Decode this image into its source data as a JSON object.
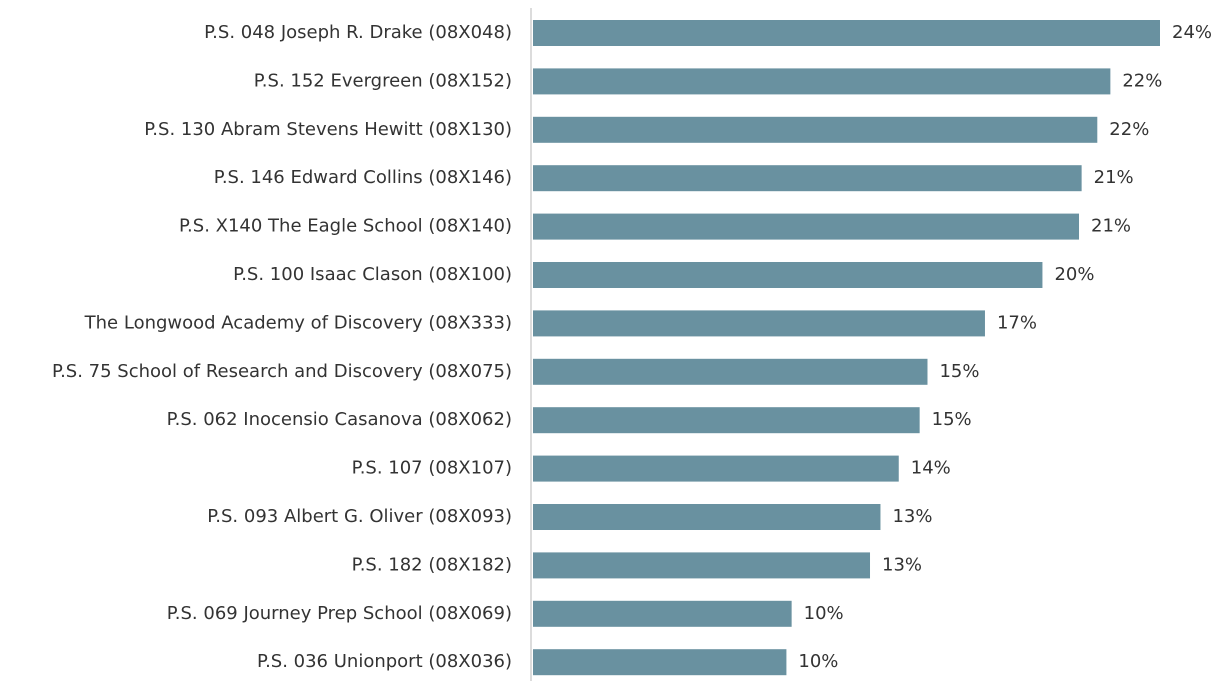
{
  "chart_data": {
    "type": "barh",
    "categories": [
      "P.S. 048 Joseph R. Drake (08X048)",
      "P.S. 152 Evergreen (08X152)",
      "P.S. 130 Abram Stevens Hewitt (08X130)",
      "P.S. 146 Edward Collins (08X146)",
      "P.S. X140 The Eagle School (08X140)",
      "P.S. 100 Isaac Clason (08X100)",
      "The Longwood Academy of Discovery (08X333)",
      "P.S. 75 School of Research and Discovery (08X075)",
      "P.S. 062 Inocensio Casanova (08X062)",
      "P.S. 107 (08X107)",
      "P.S. 093 Albert G. Oliver (08X093)",
      "P.S. 182 (08X182)",
      "P.S. 069 Journey Prep School (08X069)",
      "P.S. 036 Unionport (08X036)"
    ],
    "values": [
      24.0,
      22.1,
      21.6,
      21.0,
      20.9,
      19.5,
      17.3,
      15.1,
      14.8,
      14.0,
      13.3,
      12.9,
      9.9,
      9.7
    ],
    "value_labels": [
      "24%",
      "22%",
      "22%",
      "21%",
      "21%",
      "20%",
      "17%",
      "15%",
      "15%",
      "14%",
      "13%",
      "13%",
      "10%",
      "10%"
    ],
    "color": "#6991a0"
  }
}
